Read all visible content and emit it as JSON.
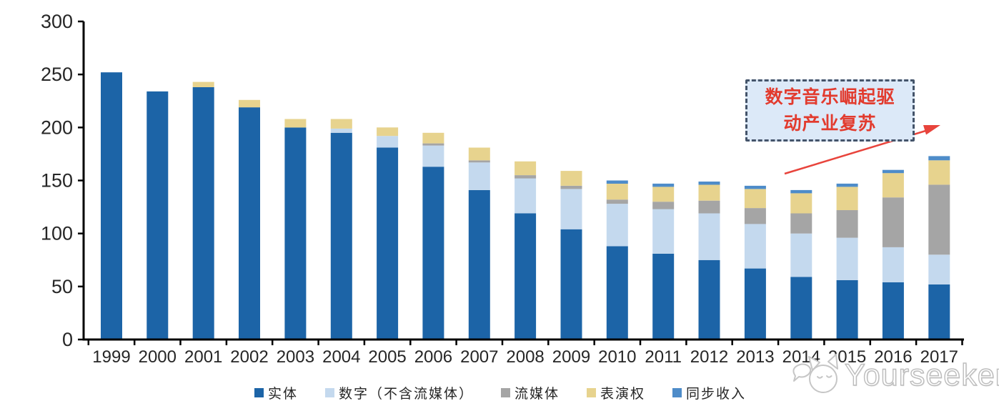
{
  "chart_data": {
    "type": "bar",
    "stacked": true,
    "title": "",
    "xlabel": "",
    "ylabel": "",
    "categories": [
      "1999",
      "2000",
      "2001",
      "2002",
      "2003",
      "2004",
      "2005",
      "2006",
      "2007",
      "2008",
      "2009",
      "2010",
      "2011",
      "2012",
      "2013",
      "2014",
      "2015",
      "2016",
      "2017"
    ],
    "series": [
      {
        "name": "实体",
        "color": "#1c64a7",
        "values": [
          252,
          234,
          238,
          219,
          200,
          195,
          181,
          163,
          141,
          119,
          104,
          88,
          81,
          75,
          67,
          59,
          56,
          54,
          52
        ]
      },
      {
        "name": "数字（不含流媒体）",
        "color": "#c4d9ee",
        "values": [
          0,
          0,
          0,
          0,
          0,
          4,
          11,
          20,
          26,
          33,
          38,
          40,
          42,
          44,
          42,
          41,
          40,
          33,
          28
        ]
      },
      {
        "name": "流媒体",
        "color": "#a5a5a5",
        "values": [
          0,
          0,
          0,
          0,
          0,
          0,
          0,
          2,
          2,
          3,
          3,
          4,
          7,
          12,
          15,
          19,
          26,
          47,
          66
        ]
      },
      {
        "name": "表演权",
        "color": "#e7d38e",
        "values": [
          0,
          0,
          5,
          7,
          8,
          9,
          8,
          10,
          12,
          13,
          14,
          15,
          14,
          15,
          18,
          19,
          22,
          23,
          23
        ]
      },
      {
        "name": "同步收入",
        "color": "#4e8cc9",
        "values": [
          0,
          0,
          0,
          0,
          0,
          0,
          0,
          0,
          0,
          0,
          0,
          3,
          3,
          3,
          3,
          3,
          3,
          3,
          4
        ]
      }
    ],
    "ylim": [
      0,
      300
    ],
    "yticks": [
      0,
      50,
      100,
      150,
      200,
      250,
      300
    ],
    "legend_position": "bottom",
    "grid": false,
    "axis_color": "#000000",
    "tick_label_color": "#262626"
  },
  "annotation": {
    "line1": "数字音乐崛起驱",
    "line2": "动产业复苏",
    "full_text": "数字音乐崛起驱动产业复苏",
    "text_color": "#e23b2e",
    "box_fill": "#dce9f8",
    "border_color": "#44546a",
    "arrow_color": "#e8443c"
  },
  "watermark": {
    "text": "Yourseeker",
    "icon": "cat-chat-logo-icon",
    "color": "#bcbcbc"
  }
}
